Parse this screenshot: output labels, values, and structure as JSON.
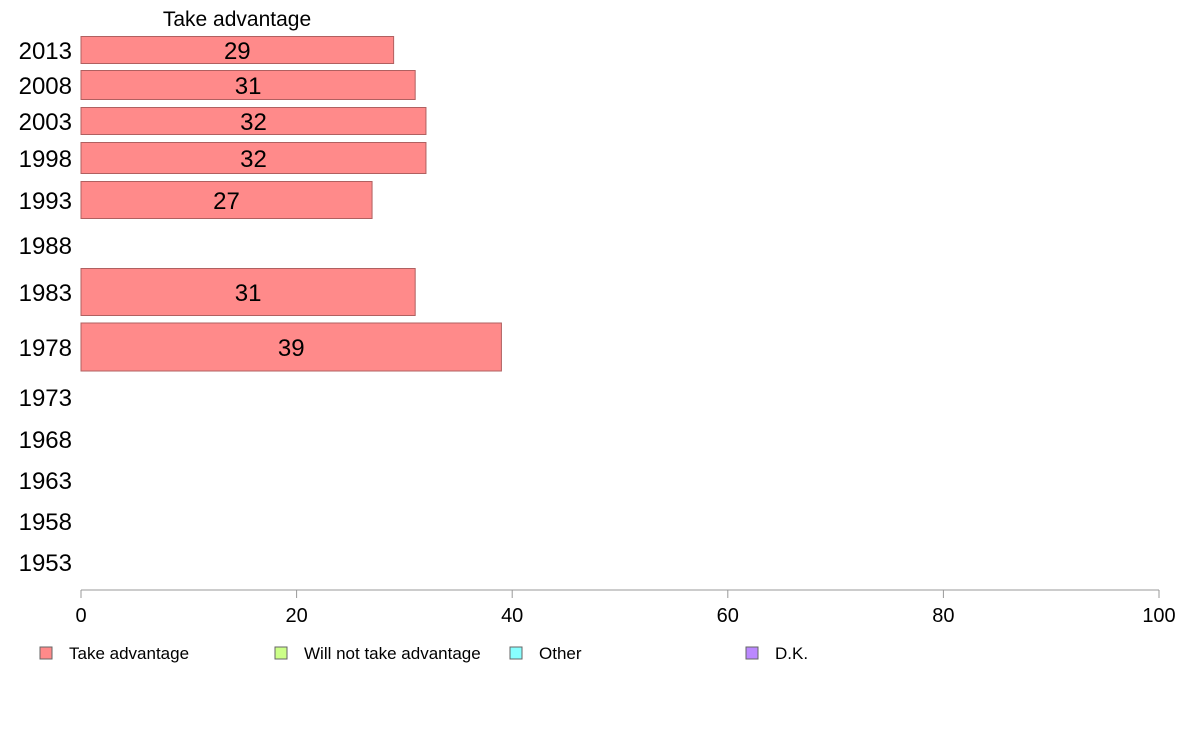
{
  "chart_data": {
    "type": "bar",
    "orientation": "horizontal",
    "series_header": "Take advantage",
    "categories": [
      "2013",
      "2008",
      "2003",
      "1998",
      "1993",
      "1988",
      "1983",
      "1978",
      "1973",
      "1968",
      "1963",
      "1958",
      "1953"
    ],
    "series": [
      {
        "name": "Take advantage",
        "values": [
          29,
          31,
          32,
          32,
          27,
          null,
          31,
          39,
          null,
          null,
          null,
          null,
          null
        ]
      },
      {
        "name": "Will not take advantage",
        "values": [
          null,
          null,
          null,
          null,
          null,
          null,
          null,
          null,
          null,
          null,
          null,
          null,
          null
        ]
      },
      {
        "name": "Other",
        "values": [
          null,
          null,
          null,
          null,
          null,
          null,
          null,
          null,
          null,
          null,
          null,
          null,
          null
        ]
      },
      {
        "name": "D.K.",
        "values": [
          null,
          null,
          null,
          null,
          null,
          null,
          null,
          null,
          null,
          null,
          null,
          null,
          null
        ]
      }
    ],
    "xlim": [
      0,
      100
    ],
    "xticks": [
      0,
      20,
      40,
      60,
      80,
      100
    ],
    "grid": false,
    "legend_position": "bottom",
    "colors": {
      "Take advantage": "#ff8a8a",
      "Will not take advantage": "#ccff88",
      "Other": "#88ffff",
      "D.K.": "#bb88ff"
    },
    "bar_border": "#b06060",
    "axis_color": "#999999"
  }
}
